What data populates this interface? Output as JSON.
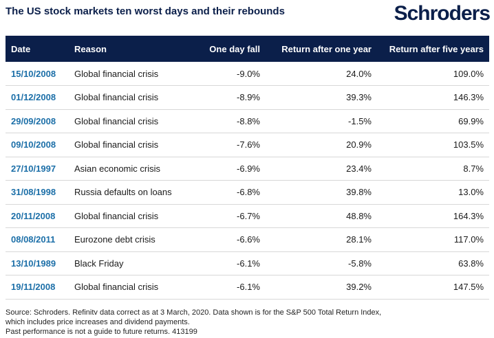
{
  "title": "The US stock markets ten worst days and their rebounds",
  "logo_text": "Schroders",
  "colors": {
    "navy": "#0b1f4a",
    "date_blue": "#1c6fa8"
  },
  "table": {
    "headers": [
      "Date",
      "Reason",
      "One day fall",
      "Return after one year",
      "Return after five years"
    ],
    "rows": [
      [
        "15/10/2008",
        "Global financial crisis",
        "-9.0%",
        "24.0%",
        "109.0%"
      ],
      [
        "01/12/2008",
        "Global financial crisis",
        "-8.9%",
        "39.3%",
        "146.3%"
      ],
      [
        "29/09/2008",
        "Global financial crisis",
        "-8.8%",
        "-1.5%",
        "69.9%"
      ],
      [
        "09/10/2008",
        "Global financial crisis",
        "-7.6%",
        "20.9%",
        "103.5%"
      ],
      [
        "27/10/1997",
        "Asian economic crisis",
        "-6.9%",
        "23.4%",
        "8.7%"
      ],
      [
        "31/08/1998",
        "Russia defaults on loans",
        "-6.8%",
        "39.8%",
        "13.0%"
      ],
      [
        "20/11/2008",
        "Global financial crisis",
        "-6.7%",
        "48.8%",
        "164.3%"
      ],
      [
        "08/08/2011",
        "Eurozone debt crisis",
        "-6.6%",
        "28.1%",
        "117.0%"
      ],
      [
        "13/10/1989",
        "Black Friday",
        "-6.1%",
        "-5.8%",
        "63.8%"
      ],
      [
        "19/11/2008",
        "Global financial crisis",
        "-6.1%",
        "39.2%",
        "147.5%"
      ]
    ]
  },
  "source_lines": [
    "Source: Schroders. Refinitv data correct as at 3 March, 2020. Data shown is for the S&P 500 Total Return Index,",
    "which includes price increases and dividend payments.",
    "Past performance is not a guide to future returns. 413199"
  ]
}
